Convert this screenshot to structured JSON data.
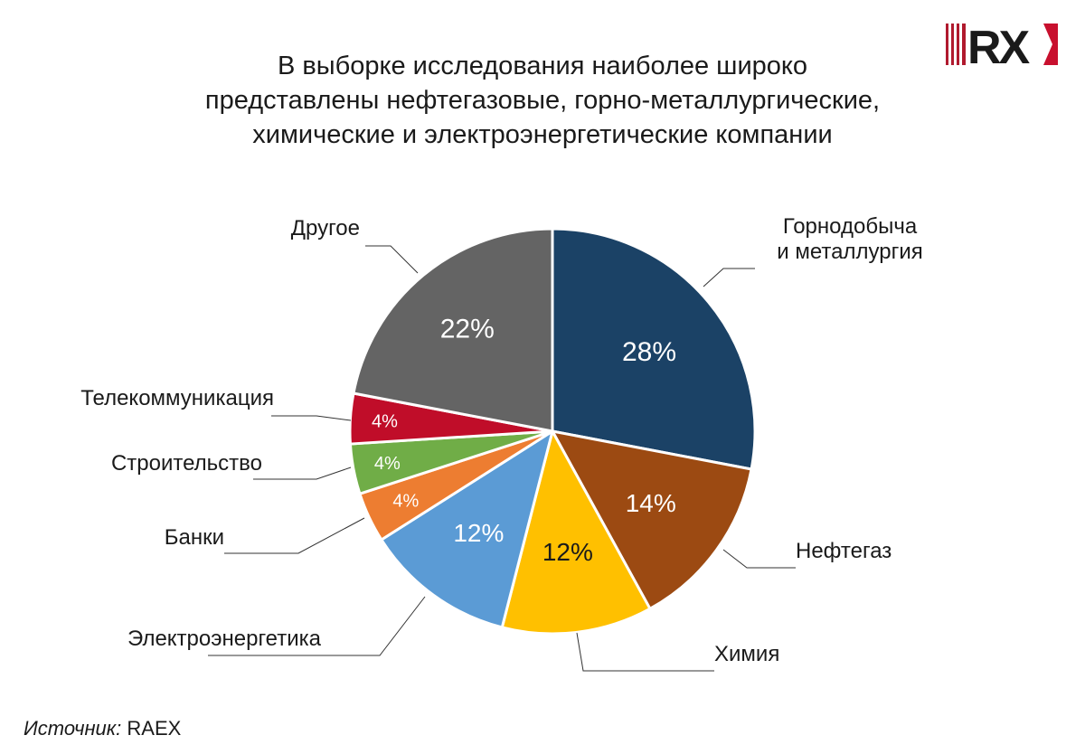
{
  "title_lines": [
    "В выборке исследования наиболее широко",
    "представлены нефтегазовые, горно-металлургические,",
    "химические и электроэнергетические компании"
  ],
  "logo": {
    "text": "RX",
    "name": "raex-logo",
    "colors": {
      "bars": "#b01a2e",
      "text": "#1a1a1a",
      "accent": "#c8102e"
    }
  },
  "source": {
    "prefix": "Источник:",
    "value": "RAEX"
  },
  "chart_data": {
    "type": "pie",
    "start": "12 o'clock",
    "direction": "clockwise",
    "legend": "none (callout labels)",
    "slices": [
      {
        "label_lines": [
          "Горнодобыча",
          "и металлургия"
        ],
        "value": 28,
        "value_label": "28%",
        "color": "#1b4266"
      },
      {
        "label_lines": [
          "Нефтегаз"
        ],
        "value": 14,
        "value_label": "14%",
        "color": "#9c4a12"
      },
      {
        "label_lines": [
          "Химия"
        ],
        "value": 12,
        "value_label": "12%",
        "color": "#ffc000"
      },
      {
        "label_lines": [
          "Электроэнергетика"
        ],
        "value": 12,
        "value_label": "12%",
        "color": "#5b9bd5"
      },
      {
        "label_lines": [
          "Банки"
        ],
        "value": 4,
        "value_label": "4%",
        "color": "#ed7d31"
      },
      {
        "label_lines": [
          "Строительство"
        ],
        "value": 4,
        "value_label": "4%",
        "color": "#70ad47"
      },
      {
        "label_lines": [
          "Телекоммуникация"
        ],
        "value": 4,
        "value_label": "4%",
        "color": "#c00d29"
      },
      {
        "label_lines": [
          "Другое"
        ],
        "value": 22,
        "value_label": "22%",
        "color": "#646464"
      }
    ]
  }
}
